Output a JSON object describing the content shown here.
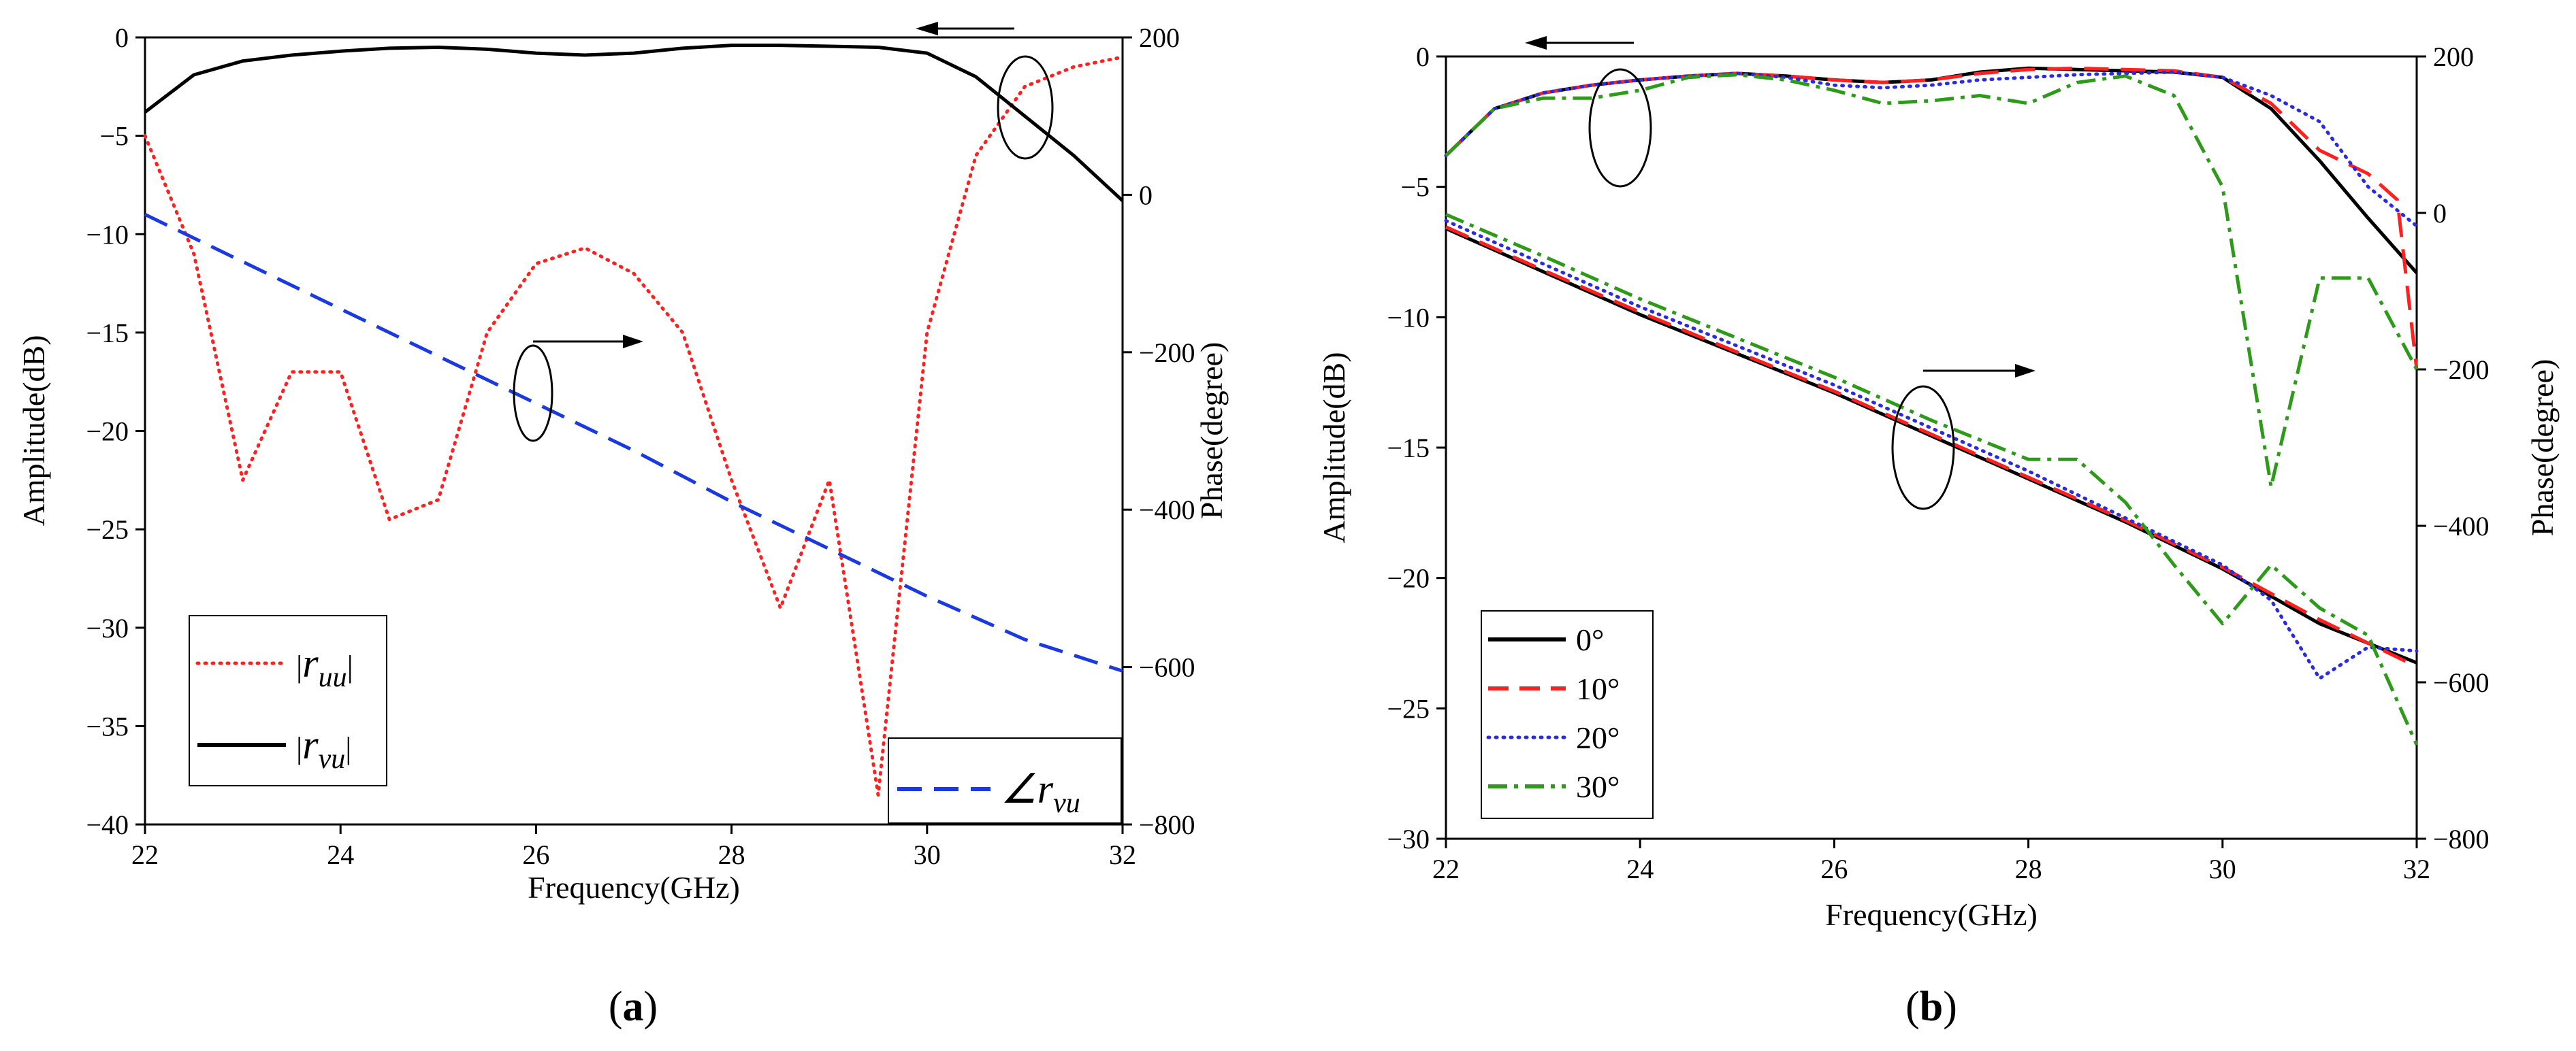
{
  "chart_data": [
    {
      "id": "a",
      "type": "line",
      "caption": {
        "open": "(",
        "letter": "a",
        "close": ")"
      },
      "xlabel": "Frequency(GHz)",
      "ylabel_left": "Amplitude(dB)",
      "ylabel_right": "Phase(degree)",
      "xlim": [
        22,
        32
      ],
      "ylim_left": [
        -40,
        0
      ],
      "ylim_right": [
        -800,
        200
      ],
      "xticks": [
        "22",
        "24",
        "26",
        "28",
        "30",
        "32"
      ],
      "yticks_left": [
        "0",
        "-5",
        "-10",
        "-15",
        "-20",
        "-25",
        "-30",
        "-35",
        "-40"
      ],
      "yticks_right": [
        "200",
        "0",
        "-200",
        "-400",
        "-600",
        "-800"
      ],
      "series": [
        {
          "name": "|r_uu|",
          "axis": "left",
          "color": "#ff2020",
          "style": "dotted",
          "x": [
            22,
            22.5,
            23,
            23.5,
            24,
            24.5,
            25,
            25.5,
            26,
            26.5,
            27,
            27.5,
            28,
            28.5,
            29,
            29.5,
            30,
            30.5,
            31,
            31.5,
            32
          ],
          "y": [
            -5,
            -11,
            -22.5,
            -17,
            -17,
            -24.5,
            -23.5,
            -15,
            -11.5,
            -10.7,
            -12,
            -15,
            -22.5,
            -29,
            -22.5,
            -38.5,
            -15,
            -6,
            -2.5,
            -1.5,
            -1
          ]
        },
        {
          "name": "|r_vu|",
          "axis": "left",
          "color": "#000000",
          "style": "solid",
          "x": [
            22,
            22.5,
            23,
            23.5,
            24,
            24.5,
            25,
            25.5,
            26,
            26.5,
            27,
            27.5,
            28,
            28.5,
            29,
            29.5,
            30,
            30.5,
            31,
            31.5,
            32
          ],
          "y": [
            -3.8,
            -1.9,
            -1.2,
            -0.9,
            -0.7,
            -0.55,
            -0.5,
            -0.6,
            -0.8,
            -0.9,
            -0.8,
            -0.55,
            -0.4,
            -0.4,
            -0.45,
            -0.5,
            -0.8,
            -2,
            -4,
            -6,
            -8.3
          ]
        },
        {
          "name": "∠r_vu",
          "axis": "right",
          "color": "#1a3ae0",
          "style": "dashed",
          "x": [
            22,
            23,
            24,
            25,
            26,
            27,
            28,
            29,
            30,
            31,
            32
          ],
          "y": [
            -25,
            -85,
            -145,
            -205,
            -265,
            -325,
            -390,
            -450,
            -510,
            -565,
            -605
          ]
        }
      ],
      "legend": [
        {
          "prefix": "|",
          "var": "r",
          "sub": "uu",
          "suffix": "|"
        },
        {
          "prefix": "|",
          "var": "r",
          "sub": "vu",
          "suffix": "|"
        },
        {
          "prefix": "∠",
          "var": "r",
          "sub": "vu",
          "suffix": ""
        }
      ]
    },
    {
      "id": "b",
      "type": "line",
      "caption": {
        "open": "(",
        "letter": "b",
        "close": ")"
      },
      "xlabel": "Frequency(GHz)",
      "ylabel_left": "Amplitude(dB)",
      "ylabel_right": "Phase(degree)",
      "xlim": [
        22,
        32
      ],
      "ylim_left": [
        -30,
        0
      ],
      "ylim_right": [
        -800,
        200
      ],
      "xticks": [
        "22",
        "24",
        "26",
        "28",
        "30",
        "32"
      ],
      "yticks_left": [
        "0",
        "-5",
        "-10",
        "-15",
        "-20",
        "-25",
        "-30"
      ],
      "yticks_right": [
        "200",
        "0",
        "-200",
        "-400",
        "-600",
        "-800"
      ],
      "legend_labels": [
        "0°",
        "10°",
        "20°",
        "30°"
      ],
      "series": [
        {
          "name": "0° amplitude",
          "axis": "left",
          "color": "#000000",
          "style": "solid",
          "x": [
            22,
            22.5,
            23,
            23.5,
            24,
            24.5,
            25,
            25.5,
            26,
            26.5,
            27,
            27.5,
            28,
            28.5,
            29,
            29.5,
            30,
            30.5,
            31,
            31.5,
            32
          ],
          "y": [
            -3.8,
            -2,
            -1.4,
            -1.1,
            -0.9,
            -0.75,
            -0.65,
            -0.75,
            -0.9,
            -1,
            -0.9,
            -0.6,
            -0.45,
            -0.5,
            -0.55,
            -0.6,
            -0.8,
            -2,
            -4,
            -6.2,
            -8.3
          ]
        },
        {
          "name": "10° amplitude",
          "axis": "left",
          "color": "#ff2020",
          "style": "dashed",
          "x": [
            22,
            22.5,
            23,
            23.5,
            24,
            24.5,
            25,
            25.5,
            26,
            26.5,
            27,
            27.5,
            28,
            28.5,
            29,
            29.5,
            30,
            30.5,
            31,
            31.5,
            31.8,
            32
          ],
          "y": [
            -3.8,
            -2,
            -1.4,
            -1.1,
            -0.9,
            -0.75,
            -0.65,
            -0.75,
            -0.9,
            -1,
            -0.9,
            -0.65,
            -0.5,
            -0.45,
            -0.5,
            -0.55,
            -0.8,
            -1.8,
            -3.6,
            -4.5,
            -5.5,
            -12
          ]
        },
        {
          "name": "20° amplitude",
          "axis": "left",
          "color": "#2a2ae0",
          "style": "dotted",
          "x": [
            22,
            22.5,
            23,
            23.5,
            24,
            24.5,
            25,
            25.5,
            26,
            26.5,
            27,
            27.5,
            28,
            28.5,
            29,
            29.5,
            30,
            30.5,
            31,
            31.2,
            31.5,
            32
          ],
          "y": [
            -3.8,
            -2,
            -1.4,
            -1.1,
            -0.9,
            -0.75,
            -0.65,
            -0.8,
            -1.1,
            -1.2,
            -1.1,
            -0.9,
            -0.8,
            -0.7,
            -0.65,
            -0.6,
            -0.8,
            -1.5,
            -2.5,
            -3.5,
            -5,
            -6.5
          ]
        },
        {
          "name": "30° amplitude",
          "axis": "left",
          "color": "#2e9a1a",
          "style": "dashdot",
          "x": [
            22,
            22.5,
            23,
            23.5,
            24,
            24.5,
            25,
            25.5,
            26,
            26.5,
            27,
            27.5,
            28,
            28.5,
            29,
            29.5,
            30,
            30.5,
            31,
            31.5,
            32
          ],
          "y": [
            -3.8,
            -2,
            -1.6,
            -1.6,
            -1.3,
            -0.8,
            -0.7,
            -0.9,
            -1.3,
            -1.8,
            -1.7,
            -1.5,
            -1.8,
            -1.0,
            -0.75,
            -1.5,
            -5,
            -16.5,
            -8.5,
            -8.5,
            -12
          ]
        },
        {
          "name": "0° phase",
          "axis": "right",
          "color": "#000000",
          "style": "solid",
          "x": [
            22,
            23,
            24,
            25,
            26,
            27,
            28,
            29,
            30,
            31,
            32
          ],
          "y": [
            -20,
            -75,
            -130,
            -180,
            -230,
            -285,
            -340,
            -395,
            -455,
            -525,
            -575
          ]
        },
        {
          "name": "10° phase",
          "axis": "right",
          "color": "#ff2020",
          "style": "dashed",
          "x": [
            22,
            23,
            24,
            25,
            26,
            27,
            28,
            29,
            30,
            31,
            32
          ],
          "y": [
            -18,
            -73,
            -127,
            -178,
            -228,
            -283,
            -338,
            -393,
            -453,
            -520,
            -580
          ]
        },
        {
          "name": "20° phase",
          "axis": "right",
          "color": "#2a2ae0",
          "style": "dotted",
          "x": [
            22,
            23,
            24,
            25,
            26,
            27,
            28,
            29,
            30,
            30.5,
            31,
            31.5,
            32
          ],
          "y": [
            -10,
            -65,
            -120,
            -170,
            -220,
            -275,
            -330,
            -390,
            -450,
            -495,
            -595,
            -555,
            -560
          ]
        },
        {
          "name": "30° phase",
          "axis": "right",
          "color": "#2e9a1a",
          "style": "dashdot",
          "x": [
            22,
            23,
            24,
            25,
            26,
            27,
            28,
            28.5,
            29,
            29.5,
            30,
            30.5,
            31,
            31.5,
            32
          ],
          "y": [
            -2,
            -55,
            -110,
            -160,
            -210,
            -265,
            -315,
            -315,
            -370,
            -450,
            -525,
            -450,
            -505,
            -540,
            -680
          ]
        }
      ]
    }
  ]
}
